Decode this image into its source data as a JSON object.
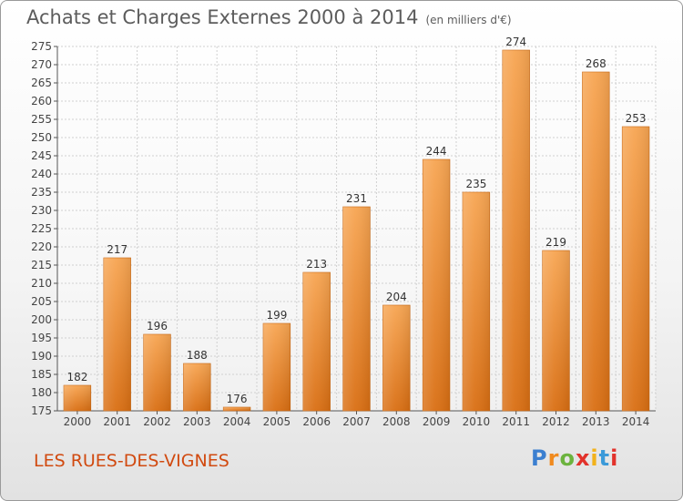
{
  "page": {
    "title": "Achats et Charges Externes 2000 à 2014",
    "unit_note": "(en milliers d'€)",
    "commune": "LES RUES-DES-VIGNES",
    "logo": {
      "letters": [
        "P",
        "r",
        "o",
        "x",
        "i",
        "t",
        "i"
      ],
      "colors": [
        "#3b7fd0",
        "#f08a1e",
        "#6cb33e",
        "#e2322b",
        "#f2b21b",
        "#3b9ad9",
        "#e2322b"
      ]
    }
  },
  "chart_data": {
    "type": "bar",
    "title": "Achats et Charges Externes 2000 à 2014",
    "categories": [
      "2000",
      "2001",
      "2002",
      "2003",
      "2004",
      "2005",
      "2006",
      "2007",
      "2008",
      "2009",
      "2010",
      "2011",
      "2012",
      "2013",
      "2014"
    ],
    "values": [
      182,
      217,
      196,
      188,
      176,
      199,
      213,
      231,
      204,
      244,
      235,
      274,
      219,
      268,
      253
    ],
    "ylim": [
      175,
      275
    ],
    "yticks": [
      "175",
      "180",
      "185",
      "190",
      "195",
      "200",
      "205",
      "210",
      "215",
      "220",
      "225",
      "230",
      "235",
      "240",
      "245",
      "250",
      "255",
      "260",
      "265",
      "270",
      "275"
    ],
    "xlabel": "",
    "ylabel": "",
    "grid": true,
    "bar_color": "#f08a2a"
  }
}
